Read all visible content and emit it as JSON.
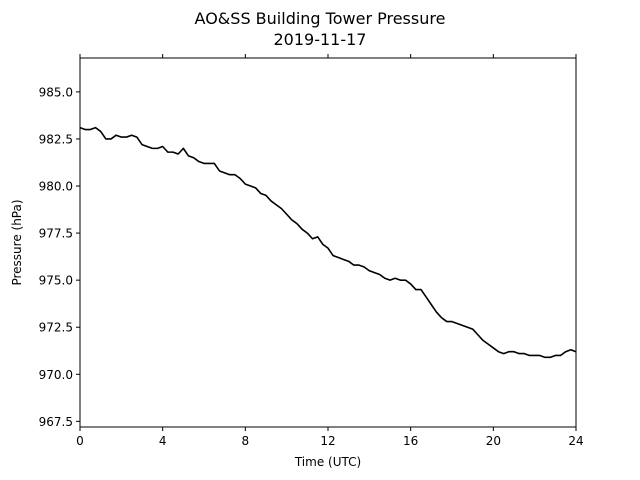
{
  "chart_data": {
    "type": "line",
    "title": "AO&SS Building Tower Pressure",
    "subtitle": "2019-11-17",
    "xlabel": "Time (UTC)",
    "ylabel": "Pressure (hPa)",
    "xlim": [
      0,
      24
    ],
    "ylim": [
      967.2,
      986.8
    ],
    "xticks": [
      0,
      4,
      8,
      12,
      16,
      20,
      24
    ],
    "xtick_labels": [
      "0",
      "4",
      "8",
      "12",
      "16",
      "20",
      "24"
    ],
    "yticks": [
      967.5,
      970.0,
      972.5,
      975.0,
      977.5,
      980.0,
      982.5,
      985.0
    ],
    "ytick_labels": [
      "967.5",
      "970.0",
      "972.5",
      "975.0",
      "977.5",
      "980.0",
      "982.5",
      "985.0"
    ],
    "grid": false,
    "line_color": "#000000",
    "series": [
      {
        "x": [
          0.0,
          0.25,
          0.5,
          0.75,
          1.0,
          1.25,
          1.5,
          1.75,
          2.0,
          2.25,
          2.5,
          2.75,
          3.0,
          3.25,
          3.5,
          3.75,
          4.0,
          4.25,
          4.5,
          4.75,
          5.0,
          5.25,
          5.5,
          5.75,
          6.0,
          6.25,
          6.5,
          6.75,
          7.0,
          7.25,
          7.5,
          7.75,
          8.0,
          8.25,
          8.5,
          8.75,
          9.0,
          9.25,
          9.5,
          9.75,
          10.0,
          10.25,
          10.5,
          10.75,
          11.0,
          11.25,
          11.5,
          11.75,
          12.0,
          12.25,
          12.5,
          12.75,
          13.0,
          13.25,
          13.5,
          13.75,
          14.0,
          14.25,
          14.5,
          14.75,
          15.0,
          15.25,
          15.5,
          15.75,
          16.0,
          16.25,
          16.5,
          16.75,
          17.0,
          17.25,
          17.5,
          17.75,
          18.0,
          18.25,
          18.5,
          18.75,
          19.0,
          19.25,
          19.5,
          19.75,
          20.0,
          20.25,
          20.5,
          20.75,
          21.0,
          21.25,
          21.5,
          21.75,
          22.0,
          22.25,
          22.5,
          22.75,
          23.0,
          23.25,
          23.5,
          23.75,
          24.0
        ],
        "y": [
          983.1,
          983.0,
          983.0,
          983.1,
          982.9,
          982.5,
          982.5,
          982.7,
          982.6,
          982.6,
          982.7,
          982.6,
          982.2,
          982.1,
          982.0,
          982.0,
          982.1,
          981.8,
          981.8,
          981.7,
          982.0,
          981.6,
          981.5,
          981.3,
          981.2,
          981.2,
          981.2,
          980.8,
          980.7,
          980.6,
          980.6,
          980.4,
          980.1,
          980.0,
          979.9,
          979.6,
          979.5,
          979.2,
          979.0,
          978.8,
          978.5,
          978.2,
          978.0,
          977.7,
          977.5,
          977.2,
          977.3,
          976.9,
          976.7,
          976.3,
          976.2,
          976.1,
          976.0,
          975.8,
          975.8,
          975.7,
          975.5,
          975.4,
          975.3,
          975.1,
          975.0,
          975.1,
          975.0,
          975.0,
          974.8,
          974.5,
          974.5,
          974.1,
          973.7,
          973.3,
          973.0,
          972.8,
          972.8,
          972.7,
          972.6,
          972.5,
          972.4,
          972.1,
          971.8,
          971.6,
          971.4,
          971.2,
          971.1,
          971.2,
          971.2,
          971.1,
          971.1,
          971.0,
          971.0,
          971.0,
          970.9,
          970.9,
          971.0,
          971.0,
          971.2,
          971.3,
          971.2
        ]
      }
    ]
  }
}
